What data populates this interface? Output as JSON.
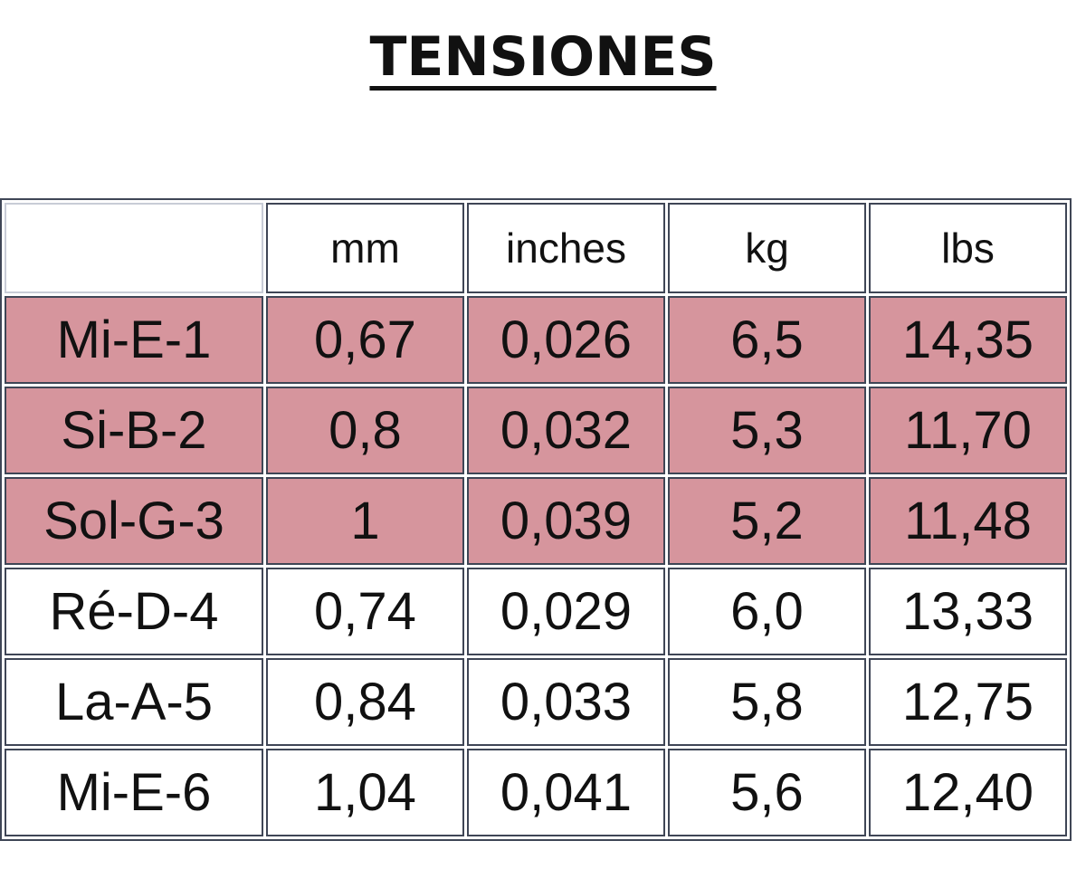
{
  "title": "TENSIONES",
  "table": {
    "columns": [
      "mm",
      "inches",
      "kg",
      "lbs"
    ],
    "rows": [
      [
        "Mi-E-1",
        "0,67",
        "0,026",
        "6,5",
        "14,35"
      ],
      [
        "Si-B-2",
        "0,8",
        "0,032",
        "5,3",
        "11,70"
      ],
      [
        "Sol-G-3",
        "1",
        "0,039",
        "5,2",
        "11,48"
      ],
      [
        "Ré-D-4",
        "0,74",
        "0,029",
        "6,0",
        "13,33"
      ],
      [
        "La-A-5",
        "0,84",
        "0,033",
        "5,8",
        "12,75"
      ],
      [
        "Mi-E-6",
        "1,04",
        "0,041",
        "5,6",
        "12,40"
      ]
    ]
  }
}
